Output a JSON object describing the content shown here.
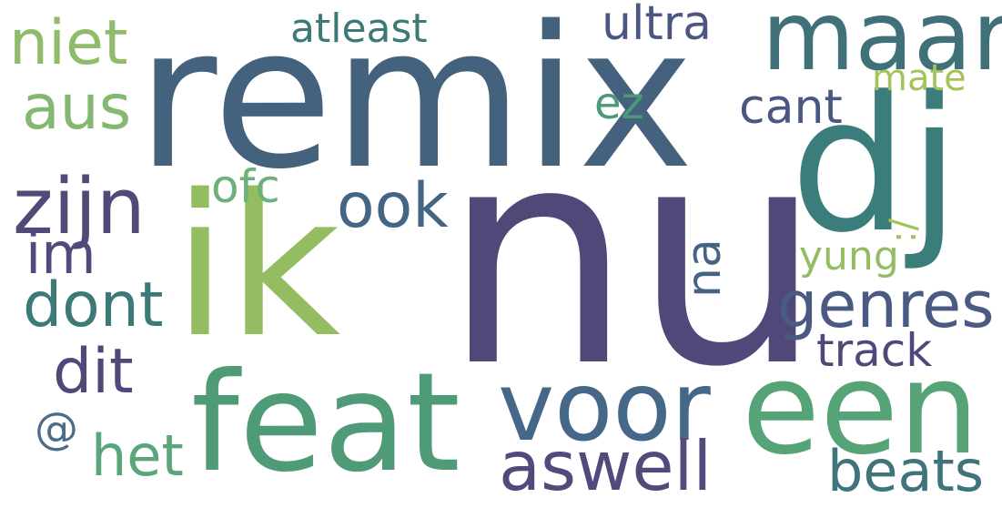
{
  "word_cloud": {
    "background": "#ffffff",
    "words": [
      {
        "text": "nu",
        "color": "#4f4878"
      },
      {
        "text": "remix",
        "color": "#44627e"
      },
      {
        "text": "ik",
        "color": "#93bd60"
      },
      {
        "text": "dj",
        "color": "#3b7d7a"
      },
      {
        "text": "feat",
        "color": "#4f9b78"
      },
      {
        "text": "een",
        "color": "#55a377"
      },
      {
        "text": "maar",
        "color": "#407078"
      },
      {
        "text": "voor",
        "color": "#466888"
      },
      {
        "text": "zijn",
        "color": "#4f4a78"
      },
      {
        "text": "aswell",
        "color": "#514b7c"
      },
      {
        "text": "genres",
        "color": "#4a5a82"
      },
      {
        "text": "dont",
        "color": "#3b7a76"
      },
      {
        "text": "dit",
        "color": "#4f4878"
      },
      {
        "text": "niet",
        "color": "#8fbb6a"
      },
      {
        "text": "aus",
        "color": "#84b872"
      },
      {
        "text": "ook",
        "color": "#456585"
      },
      {
        "text": "beats",
        "color": "#3f747a"
      },
      {
        "text": "het",
        "color": "#5aa67a"
      },
      {
        "text": "im",
        "color": "#514b7c"
      },
      {
        "text": "cant",
        "color": "#4b5682"
      },
      {
        "text": "track",
        "color": "#4f4878"
      },
      {
        "text": "ultra",
        "color": "#4b5682"
      },
      {
        "text": "@",
        "color": "#4c6c88"
      },
      {
        "text": "na",
        "color": "#446484"
      },
      {
        "text": "ofc",
        "color": "#6eb07a"
      },
      {
        "text": "atleast",
        "color": "#3b7a76"
      },
      {
        "text": "ez",
        "color": "#4a9a7a"
      },
      {
        "text": "yung",
        "color": "#93bd60"
      },
      {
        "text": "mate",
        "color": "#a3c45a"
      },
      {
        "text": ":/",
        "color": "#a3c45a"
      }
    ]
  }
}
